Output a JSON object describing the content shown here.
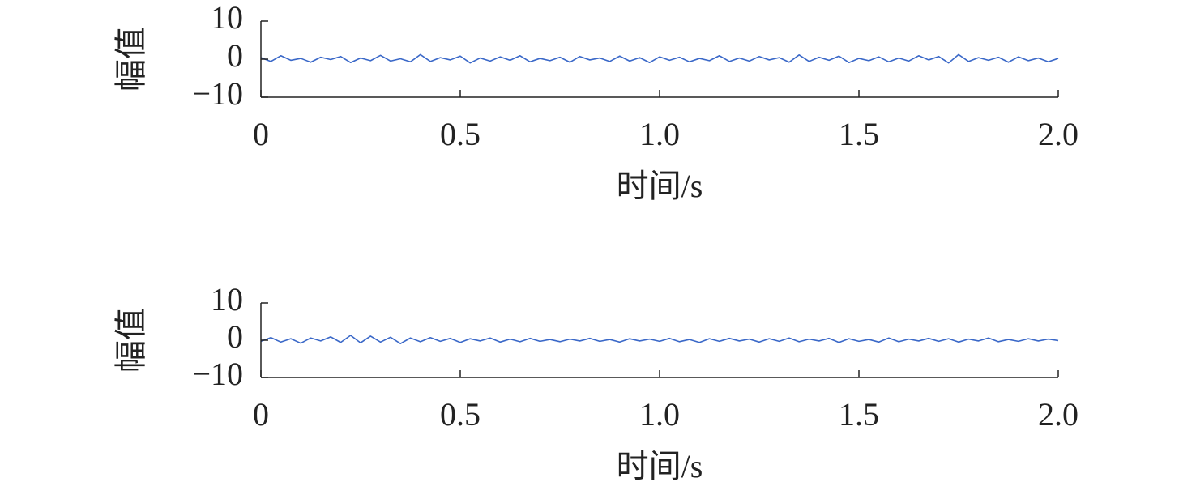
{
  "chart_data": [
    {
      "type": "line",
      "ylabel": "幅值",
      "xlabel": "时间/s",
      "x": [
        0,
        0.025,
        0.05,
        0.075,
        0.1,
        0.125,
        0.15,
        0.175,
        0.2,
        0.225,
        0.25,
        0.275,
        0.3,
        0.325,
        0.35,
        0.375,
        0.4,
        0.425,
        0.45,
        0.475,
        0.5,
        0.525,
        0.55,
        0.575,
        0.6,
        0.625,
        0.65,
        0.675,
        0.7,
        0.725,
        0.75,
        0.775,
        0.8,
        0.825,
        0.85,
        0.875,
        0.9,
        0.925,
        0.95,
        0.975,
        1,
        1.025,
        1.05,
        1.075,
        1.1,
        1.125,
        1.15,
        1.175,
        1.2,
        1.225,
        1.25,
        1.275,
        1.3,
        1.325,
        1.35,
        1.375,
        1.4,
        1.425,
        1.45,
        1.475,
        1.5,
        1.525,
        1.55,
        1.575,
        1.6,
        1.625,
        1.65,
        1.675,
        1.7,
        1.725,
        1.75,
        1.775,
        1.8,
        1.825,
        1.85,
        1.875,
        1.9,
        1.925,
        1.95,
        1.975,
        2
      ],
      "series": [
        {
          "color": "#3a68c8",
          "values": [
            0.4,
            -0.6,
            0.9,
            -0.3,
            0.2,
            -0.8,
            0.5,
            -0.1,
            0.7,
            -0.9,
            0.3,
            -0.4,
            1.0,
            -0.5,
            0.1,
            -0.7,
            1.2,
            -0.6,
            0.4,
            -0.2,
            0.8,
            -1.0,
            0.3,
            -0.5,
            0.6,
            -0.3,
            0.9,
            -0.7,
            0.2,
            -0.4,
            0.5,
            -0.8,
            0.7,
            -0.2,
            0.3,
            -0.6,
            0.8,
            -0.5,
            0.4,
            -0.9,
            0.6,
            -0.3,
            0.5,
            -0.7,
            0.2,
            -0.4,
            0.9,
            -0.6,
            0.3,
            -0.5,
            0.7,
            -0.2,
            0.4,
            -0.8,
            1.1,
            -0.6,
            0.5,
            -0.3,
            0.8,
            -0.9,
            0.2,
            -0.4,
            0.6,
            -0.7,
            0.3,
            -0.5,
            0.9,
            -0.2,
            0.7,
            -1.0,
            1.2,
            -0.6,
            0.4,
            -0.3,
            0.5,
            -0.8,
            0.6,
            -0.4,
            0.3,
            -0.7,
            0.2
          ]
        }
      ],
      "xlim": [
        0,
        2
      ],
      "xticks": [
        0,
        0.5,
        {
          "value": 1,
          "label": "1.0"
        },
        1.5,
        {
          "value": 2,
          "label": "2.0"
        }
      ],
      "ylim": [
        -10,
        10
      ],
      "yticks": [
        {
          "value": -10,
          "label": "−10"
        },
        0,
        10
      ]
    },
    {
      "type": "line",
      "ylabel": "幅值",
      "xlabel": "时间/s",
      "x": [
        0,
        0.025,
        0.05,
        0.075,
        0.1,
        0.125,
        0.15,
        0.175,
        0.2,
        0.225,
        0.25,
        0.275,
        0.3,
        0.325,
        0.35,
        0.375,
        0.4,
        0.425,
        0.45,
        0.475,
        0.5,
        0.525,
        0.55,
        0.575,
        0.6,
        0.625,
        0.65,
        0.675,
        0.7,
        0.725,
        0.75,
        0.775,
        0.8,
        0.825,
        0.85,
        0.875,
        0.9,
        0.925,
        0.95,
        0.975,
        1,
        1.025,
        1.05,
        1.075,
        1.1,
        1.125,
        1.15,
        1.175,
        1.2,
        1.225,
        1.25,
        1.275,
        1.3,
        1.325,
        1.35,
        1.375,
        1.4,
        1.425,
        1.45,
        1.475,
        1.5,
        1.525,
        1.55,
        1.575,
        1.6,
        1.625,
        1.65,
        1.675,
        1.7,
        1.725,
        1.75,
        1.775,
        1.8,
        1.825,
        1.85,
        1.875,
        1.9,
        1.925,
        1.95,
        1.975,
        2
      ],
      "series": [
        {
          "color": "#3a68c8",
          "values": [
            -0.3,
            0.7,
            -0.5,
            0.4,
            -0.8,
            0.6,
            -0.2,
            0.9,
            -0.6,
            1.3,
            -0.7,
            1.1,
            -0.5,
            0.8,
            -0.9,
            0.6,
            -0.4,
            0.7,
            -0.3,
            0.5,
            -0.6,
            0.4,
            -0.2,
            0.6,
            -0.5,
            0.3,
            -0.4,
            0.5,
            -0.3,
            0.2,
            -0.4,
            0.3,
            -0.2,
            0.5,
            -0.3,
            0.2,
            -0.5,
            0.4,
            -0.2,
            0.3,
            -0.3,
            0.5,
            -0.4,
            0.2,
            -0.6,
            0.4,
            -0.3,
            0.5,
            -0.2,
            0.3,
            -0.5,
            0.4,
            -0.3,
            0.6,
            -0.4,
            0.3,
            -0.2,
            0.5,
            -0.6,
            0.4,
            -0.3,
            0.2,
            -0.5,
            0.6,
            -0.4,
            0.3,
            -0.2,
            0.5,
            -0.3,
            0.4,
            -0.5,
            0.3,
            -0.2,
            0.6,
            -0.4,
            0.2,
            -0.3,
            0.4,
            -0.2,
            0.3,
            -0.1
          ]
        }
      ],
      "xlim": [
        0,
        2
      ],
      "xticks": [
        0,
        0.5,
        {
          "value": 1,
          "label": "1.0"
        },
        1.5,
        {
          "value": 2,
          "label": "2.0"
        }
      ],
      "ylim": [
        -10,
        10
      ],
      "yticks": [
        {
          "value": -10,
          "label": "−10"
        },
        0,
        10
      ]
    }
  ]
}
